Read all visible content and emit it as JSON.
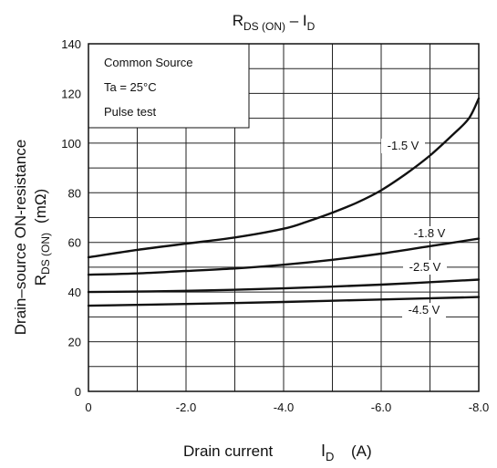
{
  "chart_data": {
    "type": "line",
    "title": {
      "main": "R",
      "sub": "DS (ON)",
      "dash": " – I",
      "sub2": "D"
    },
    "xlabel": {
      "text": "Drain current",
      "symbol": "I",
      "sub": "D",
      "unit": "(A)"
    },
    "ylabel": {
      "line1": "Drain–source ON-resistance",
      "sym": "R",
      "sub": "DS (ON)",
      "unit": "(mΩ)"
    },
    "xlim": [
      0,
      -8.0
    ],
    "ylim": [
      0,
      140
    ],
    "x_ticks": [
      "0",
      "-2.0",
      "-4.0",
      "-6.0",
      "-8.0"
    ],
    "x_tick_values": [
      0,
      -2.0,
      -4.0,
      -6.0,
      -8.0
    ],
    "y_ticks": [
      "0",
      "20",
      "40",
      "60",
      "80",
      "100",
      "120",
      "140"
    ],
    "y_tick_values": [
      0,
      20,
      40,
      60,
      80,
      100,
      120,
      140
    ],
    "grid": true,
    "conditions": [
      "Common Source",
      "Ta = 25°C",
      "Pulse test"
    ],
    "series": [
      {
        "name": "-1.5 V",
        "x": [
          0,
          -1,
          -2,
          -3,
          -4,
          -4.5,
          -5,
          -5.5,
          -6,
          -6.5,
          -7,
          -7.5,
          -7.8,
          -8.0
        ],
        "y": [
          54,
          57,
          59.5,
          62,
          65.5,
          68.5,
          72,
          76,
          81,
          87.5,
          95,
          104,
          110,
          118
        ]
      },
      {
        "name": "-1.8 V",
        "x": [
          0,
          -1,
          -2,
          -3,
          -4,
          -5,
          -6,
          -7,
          -8.0
        ],
        "y": [
          47,
          47.5,
          48.5,
          49.5,
          51,
          53,
          55.5,
          58.5,
          61.5
        ]
      },
      {
        "name": "-2.5 V",
        "x": [
          0,
          -2,
          -4,
          -6,
          -8.0
        ],
        "y": [
          40,
          40.5,
          41.5,
          43,
          45
        ]
      },
      {
        "name": "-4.5 V",
        "x": [
          0,
          -2,
          -4,
          -6,
          -8.0
        ],
        "y": [
          34.5,
          35.2,
          36,
          37,
          38
        ]
      }
    ]
  }
}
